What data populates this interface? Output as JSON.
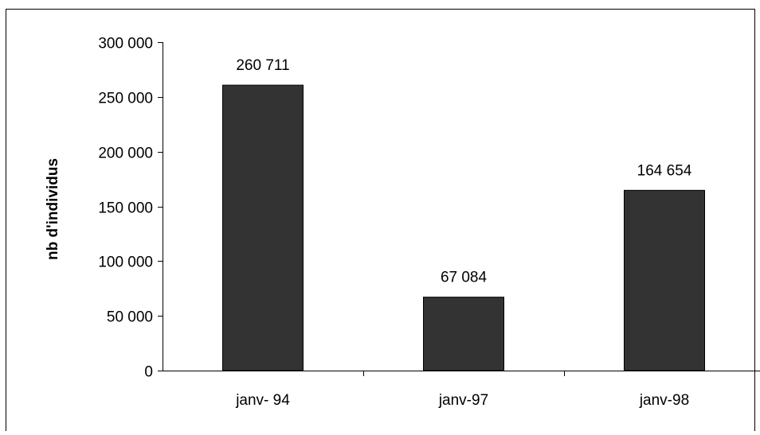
{
  "chart_data": {
    "type": "bar",
    "title": "",
    "xlabel": "",
    "ylabel": "nb d'individus",
    "categories": [
      "janv- 94",
      "janv-97",
      "janv-98"
    ],
    "values": [
      260711,
      67084,
      164654
    ],
    "data_labels": [
      "260 711",
      "67 084",
      "164 654"
    ],
    "ylim": [
      0,
      300000
    ],
    "yticks": [
      0,
      50000,
      100000,
      150000,
      200000,
      250000,
      300000
    ],
    "ytick_labels": [
      "0",
      "50 000",
      "100 000",
      "150 000",
      "200 000",
      "250 000",
      "300 000"
    ],
    "grid": false,
    "legend": "none",
    "bar_color": "#333333"
  }
}
